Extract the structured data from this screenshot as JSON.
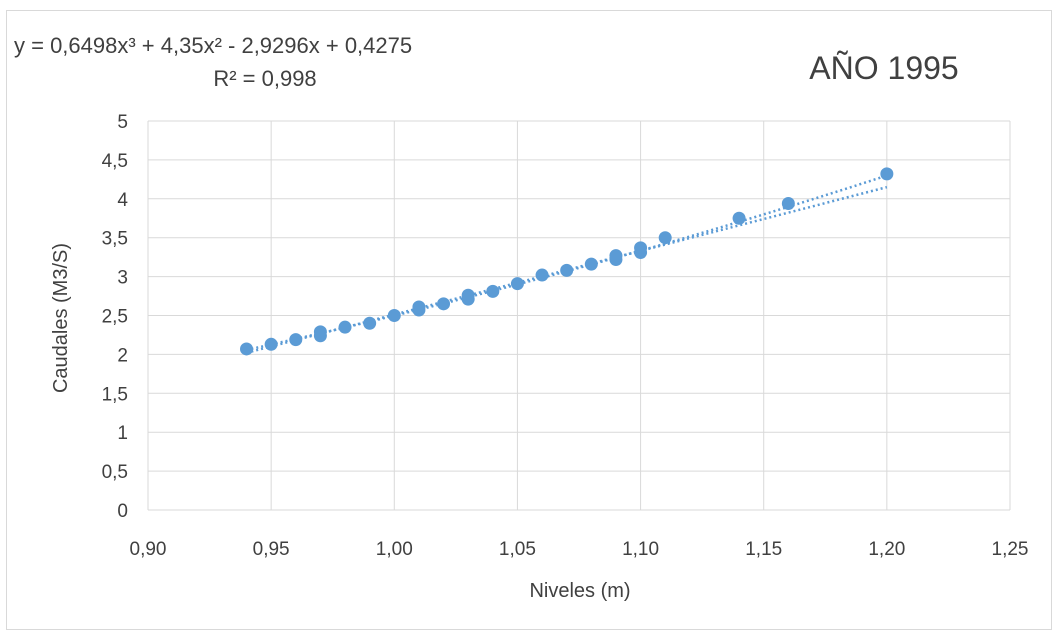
{
  "chart_data": {
    "type": "scatter",
    "title": "AÑO 1995",
    "xlabel": "Niveles (m)",
    "ylabel": "Caudales (M3/S)",
    "xlim": [
      0.9,
      1.25
    ],
    "ylim": [
      0,
      5
    ],
    "x_ticks": [
      "0,90",
      "0,95",
      "1,00",
      "1,05",
      "1,10",
      "1,15",
      "1,20",
      "1,25"
    ],
    "y_ticks": [
      "0",
      "0,5",
      "1",
      "1,5",
      "2",
      "2,5",
      "3",
      "3,5",
      "4",
      "4,5",
      "5"
    ],
    "grid": "vertical-and-horizontal",
    "legend": "none",
    "marker_color": "#5b9bd5",
    "series": [
      {
        "x": [
          0.94,
          0.95,
          0.96,
          0.97,
          0.97,
          0.98,
          0.99,
          1.0,
          1.01,
          1.01,
          1.02,
          1.03,
          1.03,
          1.04,
          1.05,
          1.06,
          1.07,
          1.08,
          1.09,
          1.09,
          1.1,
          1.1,
          1.11,
          1.14,
          1.16,
          1.2
        ],
        "y": [
          2.07,
          2.13,
          2.19,
          2.24,
          2.29,
          2.35,
          2.4,
          2.5,
          2.57,
          2.61,
          2.65,
          2.71,
          2.76,
          2.81,
          2.91,
          3.02,
          3.08,
          3.16,
          3.22,
          3.27,
          3.31,
          3.37,
          3.5,
          3.75,
          3.94,
          4.32
        ]
      }
    ],
    "trendlines": [
      {
        "type": "polynomial",
        "equation_line1": "y = 0,6498x³ + 4,35x² - 2,9296x + 0,4275",
        "equation_line2": "R² = 0,998",
        "coefficients": [
          0.6498,
          4.35,
          -2.9296,
          0.4275
        ],
        "x_range": [
          0.94,
          1.2
        ]
      },
      {
        "type": "linear",
        "x_range": [
          0.94,
          1.2
        ],
        "y_range": [
          2.02,
          4.15
        ]
      }
    ]
  }
}
